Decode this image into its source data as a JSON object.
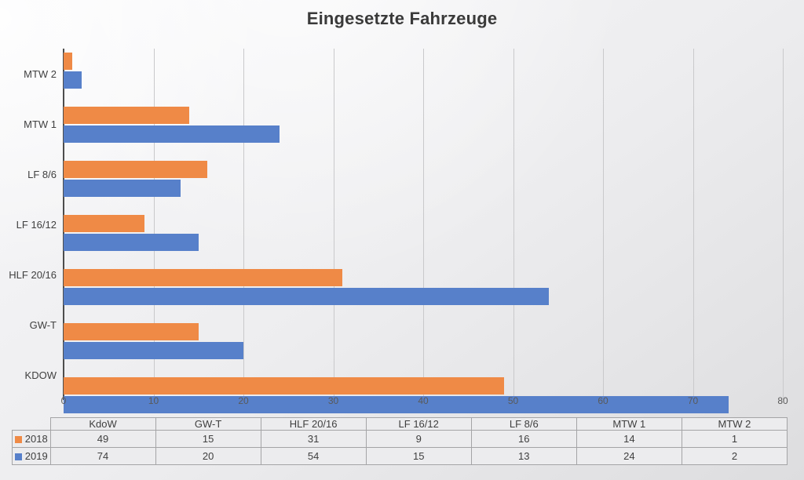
{
  "title": "Eingesetzte Fahrzeuge",
  "chart_data": {
    "type": "bar",
    "orientation": "horizontal",
    "title": "Eingesetzte Fahrzeuge",
    "categories": [
      "MTW 2",
      "MTW 1",
      "LF 8/6",
      "LF 16/12",
      "HLF 20/16",
      "GW-T",
      "KDOW"
    ],
    "series": [
      {
        "name": "2018",
        "color": "#EF8A46",
        "values": [
          1,
          14,
          16,
          9,
          31,
          15,
          49
        ]
      },
      {
        "name": "2019",
        "color": "#5780CA",
        "values": [
          2,
          24,
          13,
          15,
          54,
          20,
          74
        ]
      }
    ],
    "xlim": [
      0,
      80
    ],
    "xticks": [
      0,
      10,
      20,
      30,
      40,
      50,
      60,
      70,
      80
    ],
    "grid": "vertical-gridlines-on",
    "legend_position": "bottom-table-row-labels"
  },
  "table": {
    "columns": [
      "KdoW",
      "GW-T",
      "HLF 20/16",
      "LF 16/12",
      "LF 8/6",
      "MTW 1",
      "MTW 2"
    ],
    "rows": [
      {
        "label": "2018",
        "swatch_color": "#EF8A46",
        "values": [
          "49",
          "15",
          "31",
          "9",
          "16",
          "14",
          "1"
        ]
      },
      {
        "label": "2019",
        "swatch_color": "#5780CA",
        "values": [
          "74",
          "20",
          "54",
          "15",
          "13",
          "24",
          "2"
        ]
      }
    ]
  },
  "colors": {
    "series_2018": "#EF8A46",
    "series_2019": "#5780CA",
    "gridline": "#C9C9CB",
    "axis_line": "#4D4D4D",
    "title_text": "#3A3A3A",
    "tick_text": "#595959",
    "label_text": "#404040",
    "table_border": "#A4A4A6",
    "table_cell_bg": "#ECECEE"
  }
}
